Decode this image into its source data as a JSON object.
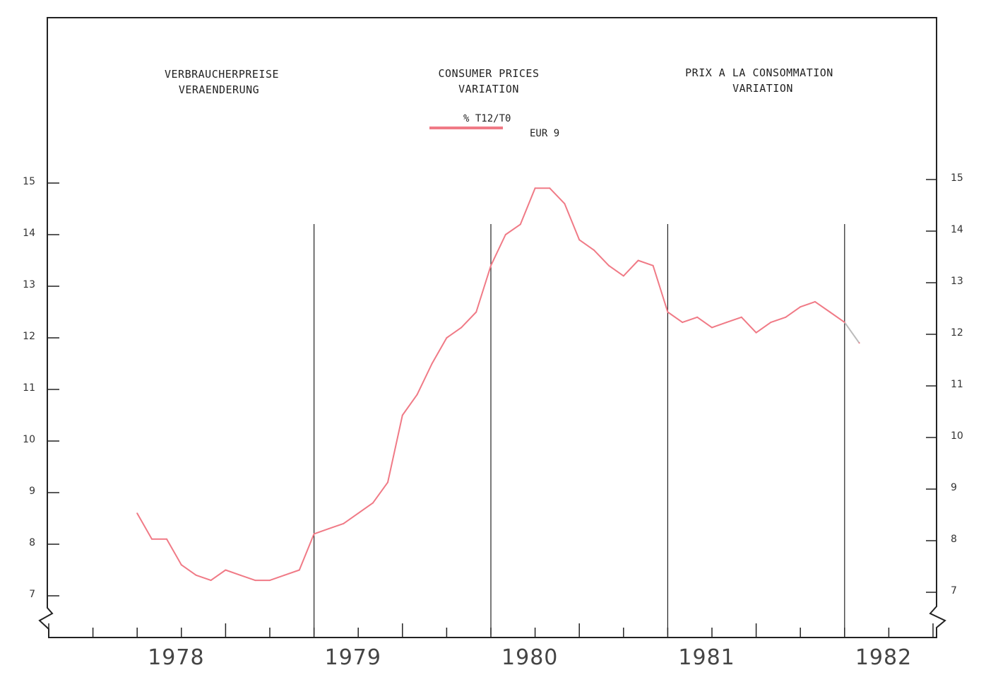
{
  "headers": {
    "de": {
      "line1": "VERBRAUCHERPREISE",
      "line2": "VERAENDERUNG"
    },
    "en": {
      "line1": "CONSUMER PRICES",
      "line2": "VARIATION"
    },
    "fr": {
      "line1": "PRIX A LA CONSOMMATION",
      "line2": "VARIATION"
    }
  },
  "legend": {
    "measure": "% T12/T0",
    "region": "EUR 9"
  },
  "colors": {
    "series": "#f07a86",
    "series_tail": "#bbbbbb",
    "axis": "#222222"
  },
  "chart_data": {
    "type": "line",
    "title": "",
    "xlabel": "",
    "ylabel": "",
    "ylim": [
      7,
      15
    ],
    "y_ticks": [
      "7",
      "8",
      "9",
      "10",
      "11",
      "12",
      "13",
      "14",
      "15"
    ],
    "x_range": [
      1977.5,
      1982.5
    ],
    "year_labels": [
      "1978",
      "1979",
      "1980",
      "1981",
      "1982"
    ],
    "year_dividers": [
      1979,
      1980,
      1981,
      1982
    ],
    "grid": false,
    "legend_position": "top-center",
    "series": [
      {
        "name": "EUR 9",
        "x": [
          1978.0,
          1978.083,
          1978.167,
          1978.25,
          1978.333,
          1978.417,
          1978.5,
          1978.583,
          1978.667,
          1978.75,
          1978.833,
          1978.917,
          1979.0,
          1979.083,
          1979.167,
          1979.25,
          1979.333,
          1979.417,
          1979.5,
          1979.583,
          1979.667,
          1979.75,
          1979.833,
          1979.917,
          1980.0,
          1980.083,
          1980.167,
          1980.25,
          1980.333,
          1980.417,
          1980.5,
          1980.583,
          1980.667,
          1980.75,
          1980.833,
          1980.917,
          1981.0,
          1981.083,
          1981.167,
          1981.25,
          1981.333,
          1981.417,
          1981.5,
          1981.583,
          1981.667,
          1981.75,
          1981.833,
          1981.917,
          1982.0,
          1982.083
        ],
        "values": [
          8.6,
          8.1,
          8.1,
          7.6,
          7.4,
          7.3,
          7.5,
          7.4,
          7.3,
          7.3,
          7.4,
          7.5,
          8.2,
          8.3,
          8.4,
          8.6,
          8.8,
          9.2,
          10.5,
          10.9,
          11.5,
          12.0,
          12.2,
          12.5,
          13.4,
          14.0,
          14.2,
          14.9,
          14.9,
          14.6,
          13.9,
          13.7,
          13.4,
          13.2,
          13.5,
          13.4,
          12.5,
          12.3,
          12.4,
          12.2,
          12.3,
          12.4,
          12.1,
          12.3,
          12.4,
          12.6,
          12.7,
          12.5,
          12.3,
          11.9
        ]
      }
    ]
  }
}
